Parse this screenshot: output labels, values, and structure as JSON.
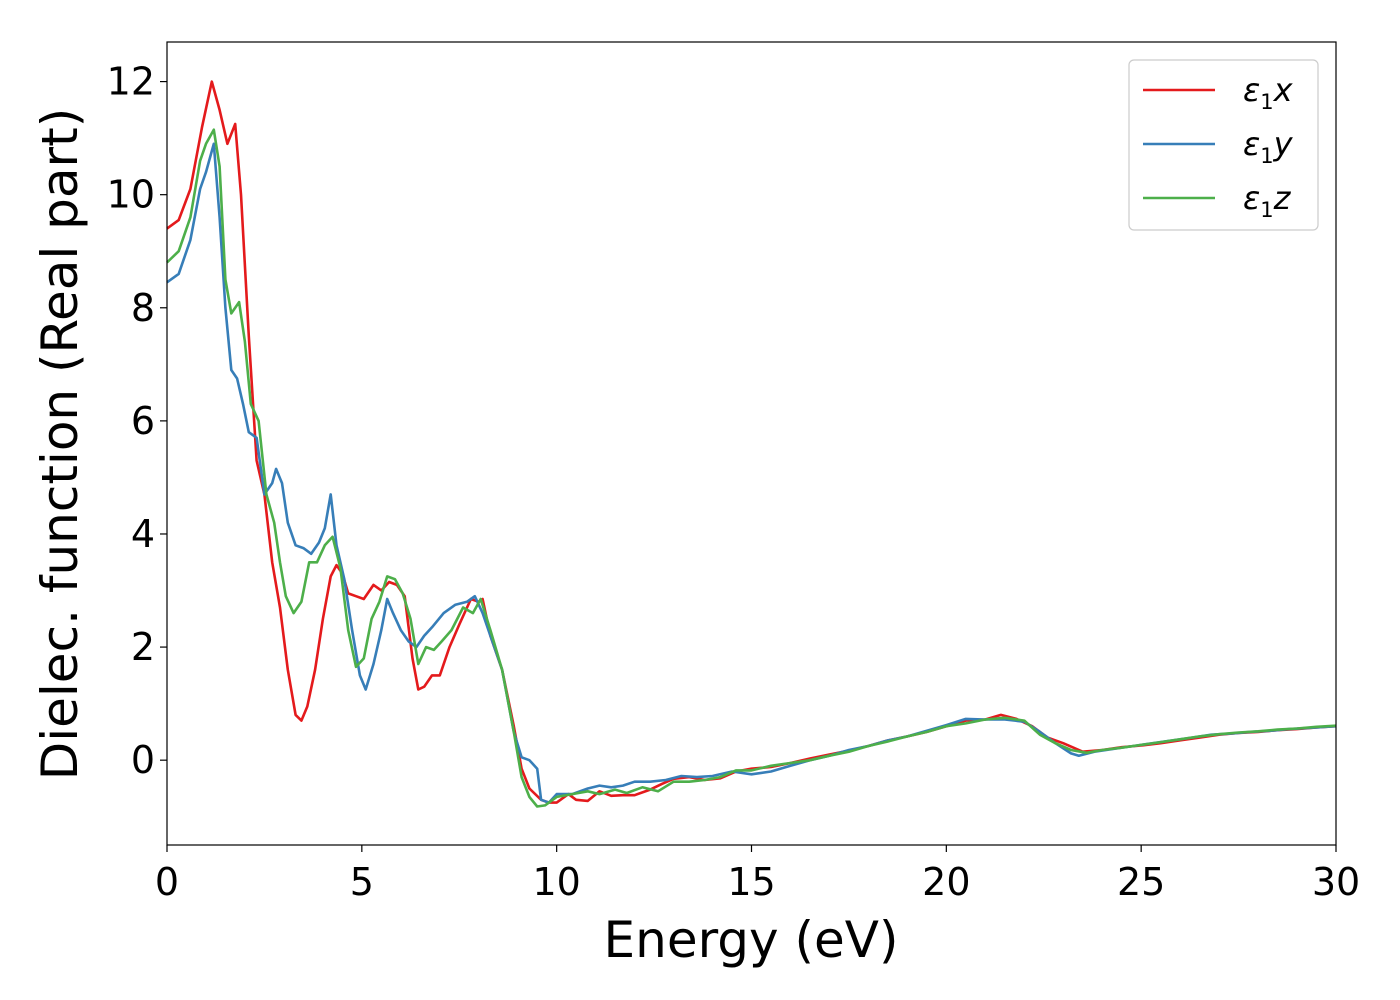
{
  "chart_data": {
    "type": "line",
    "xlabel": "Energy (eV)",
    "ylabel": "Dielec. function (Real part)",
    "xlim": [
      0,
      30
    ],
    "ylim": [
      -1.5,
      12.7
    ],
    "xticks": [
      0,
      5,
      10,
      15,
      20,
      25,
      30
    ],
    "yticks": [
      0,
      2,
      4,
      6,
      8,
      10,
      12
    ],
    "grid": false,
    "legend_position": "top-right",
    "series": [
      {
        "name": "ε1x",
        "legend": {
          "base": "ε",
          "sub": "1",
          "tail": "x"
        },
        "color": "#e41a1c",
        "points": [
          [
            0,
            9.4
          ],
          [
            0.3,
            9.55
          ],
          [
            0.6,
            10.1
          ],
          [
            0.9,
            11.2
          ],
          [
            1.15,
            12.0
          ],
          [
            1.35,
            11.5
          ],
          [
            1.55,
            10.9
          ],
          [
            1.75,
            11.25
          ],
          [
            1.9,
            10.0
          ],
          [
            2.1,
            7.5
          ],
          [
            2.3,
            5.3
          ],
          [
            2.5,
            4.7
          ],
          [
            2.7,
            3.5
          ],
          [
            2.9,
            2.7
          ],
          [
            3.1,
            1.6
          ],
          [
            3.3,
            0.8
          ],
          [
            3.45,
            0.7
          ],
          [
            3.6,
            0.95
          ],
          [
            3.8,
            1.6
          ],
          [
            4.0,
            2.5
          ],
          [
            4.2,
            3.25
          ],
          [
            4.35,
            3.45
          ],
          [
            4.5,
            3.3
          ],
          [
            4.65,
            2.95
          ],
          [
            4.85,
            2.9
          ],
          [
            5.05,
            2.85
          ],
          [
            5.3,
            3.1
          ],
          [
            5.5,
            3.0
          ],
          [
            5.7,
            3.15
          ],
          [
            5.9,
            3.1
          ],
          [
            6.1,
            2.9
          ],
          [
            6.3,
            1.8
          ],
          [
            6.45,
            1.25
          ],
          [
            6.6,
            1.3
          ],
          [
            6.8,
            1.5
          ],
          [
            7.0,
            1.5
          ],
          [
            7.25,
            2.0
          ],
          [
            7.5,
            2.4
          ],
          [
            7.8,
            2.85
          ],
          [
            8.0,
            2.8
          ],
          [
            8.1,
            2.85
          ],
          [
            8.3,
            2.2
          ],
          [
            8.6,
            1.6
          ],
          [
            8.9,
            0.6
          ],
          [
            9.1,
            -0.15
          ],
          [
            9.3,
            -0.5
          ],
          [
            9.6,
            -0.7
          ],
          [
            9.8,
            -0.75
          ],
          [
            10.0,
            -0.75
          ],
          [
            10.3,
            -0.6
          ],
          [
            10.5,
            -0.7
          ],
          [
            10.8,
            -0.72
          ],
          [
            11.1,
            -0.55
          ],
          [
            11.4,
            -0.63
          ],
          [
            11.7,
            -0.62
          ],
          [
            12.0,
            -0.62
          ],
          [
            12.4,
            -0.52
          ],
          [
            12.7,
            -0.42
          ],
          [
            13.0,
            -0.33
          ],
          [
            13.4,
            -0.3
          ],
          [
            13.8,
            -0.35
          ],
          [
            14.2,
            -0.32
          ],
          [
            14.6,
            -0.2
          ],
          [
            15.0,
            -0.15
          ],
          [
            15.5,
            -0.12
          ],
          [
            16.0,
            -0.05
          ],
          [
            16.5,
            0.03
          ],
          [
            17.0,
            0.1
          ],
          [
            17.5,
            0.17
          ],
          [
            18.0,
            0.25
          ],
          [
            18.5,
            0.35
          ],
          [
            19.0,
            0.42
          ],
          [
            19.5,
            0.5
          ],
          [
            20.0,
            0.6
          ],
          [
            20.5,
            0.7
          ],
          [
            21.0,
            0.72
          ],
          [
            21.4,
            0.8
          ],
          [
            21.8,
            0.73
          ],
          [
            22.2,
            0.6
          ],
          [
            22.6,
            0.4
          ],
          [
            23.0,
            0.3
          ],
          [
            23.5,
            0.15
          ],
          [
            24.0,
            0.18
          ],
          [
            24.5,
            0.23
          ],
          [
            25.0,
            0.26
          ],
          [
            25.5,
            0.3
          ],
          [
            26.0,
            0.35
          ],
          [
            26.5,
            0.4
          ],
          [
            27.0,
            0.45
          ],
          [
            27.5,
            0.48
          ],
          [
            28.0,
            0.5
          ],
          [
            28.5,
            0.53
          ],
          [
            29.0,
            0.55
          ],
          [
            29.5,
            0.58
          ],
          [
            30.0,
            0.6
          ]
        ]
      },
      {
        "name": "ε1y",
        "legend": {
          "base": "ε",
          "sub": "1",
          "tail": "y"
        },
        "color": "#377eb8",
        "points": [
          [
            0,
            8.45
          ],
          [
            0.3,
            8.6
          ],
          [
            0.6,
            9.2
          ],
          [
            0.85,
            10.1
          ],
          [
            1.0,
            10.4
          ],
          [
            1.2,
            10.9
          ],
          [
            1.35,
            9.6
          ],
          [
            1.5,
            8.0
          ],
          [
            1.65,
            6.9
          ],
          [
            1.8,
            6.75
          ],
          [
            1.95,
            6.3
          ],
          [
            2.1,
            5.8
          ],
          [
            2.3,
            5.7
          ],
          [
            2.5,
            4.7
          ],
          [
            2.7,
            4.9
          ],
          [
            2.8,
            5.15
          ],
          [
            2.95,
            4.9
          ],
          [
            3.1,
            4.2
          ],
          [
            3.3,
            3.8
          ],
          [
            3.5,
            3.75
          ],
          [
            3.7,
            3.65
          ],
          [
            3.9,
            3.85
          ],
          [
            4.05,
            4.1
          ],
          [
            4.2,
            4.7
          ],
          [
            4.35,
            3.8
          ],
          [
            4.55,
            3.2
          ],
          [
            4.75,
            2.3
          ],
          [
            4.95,
            1.5
          ],
          [
            5.1,
            1.25
          ],
          [
            5.3,
            1.7
          ],
          [
            5.5,
            2.3
          ],
          [
            5.65,
            2.85
          ],
          [
            5.8,
            2.6
          ],
          [
            6.0,
            2.3
          ],
          [
            6.2,
            2.1
          ],
          [
            6.4,
            2.0
          ],
          [
            6.6,
            2.2
          ],
          [
            6.8,
            2.35
          ],
          [
            7.1,
            2.6
          ],
          [
            7.4,
            2.75
          ],
          [
            7.7,
            2.8
          ],
          [
            7.9,
            2.9
          ],
          [
            8.1,
            2.6
          ],
          [
            8.3,
            2.2
          ],
          [
            8.6,
            1.6
          ],
          [
            8.9,
            0.5
          ],
          [
            9.1,
            0.05
          ],
          [
            9.3,
            0.0
          ],
          [
            9.5,
            -0.15
          ],
          [
            9.6,
            -0.7
          ],
          [
            9.8,
            -0.75
          ],
          [
            10.0,
            -0.6
          ],
          [
            10.4,
            -0.6
          ],
          [
            10.8,
            -0.5
          ],
          [
            11.1,
            -0.45
          ],
          [
            11.4,
            -0.48
          ],
          [
            11.7,
            -0.45
          ],
          [
            12.0,
            -0.38
          ],
          [
            12.4,
            -0.38
          ],
          [
            12.8,
            -0.35
          ],
          [
            13.2,
            -0.28
          ],
          [
            13.6,
            -0.3
          ],
          [
            14.0,
            -0.28
          ],
          [
            14.5,
            -0.2
          ],
          [
            15.0,
            -0.25
          ],
          [
            15.5,
            -0.2
          ],
          [
            16.0,
            -0.1
          ],
          [
            16.5,
            0.0
          ],
          [
            17.0,
            0.08
          ],
          [
            17.5,
            0.18
          ],
          [
            18.0,
            0.25
          ],
          [
            18.5,
            0.35
          ],
          [
            19.0,
            0.42
          ],
          [
            19.5,
            0.52
          ],
          [
            20.0,
            0.62
          ],
          [
            20.5,
            0.73
          ],
          [
            21.0,
            0.72
          ],
          [
            21.5,
            0.72
          ],
          [
            22.0,
            0.68
          ],
          [
            22.4,
            0.5
          ],
          [
            22.8,
            0.3
          ],
          [
            23.2,
            0.12
          ],
          [
            23.4,
            0.08
          ],
          [
            23.8,
            0.15
          ],
          [
            24.3,
            0.2
          ],
          [
            24.8,
            0.25
          ],
          [
            25.3,
            0.3
          ],
          [
            25.8,
            0.35
          ],
          [
            26.3,
            0.4
          ],
          [
            26.8,
            0.45
          ],
          [
            27.3,
            0.47
          ],
          [
            27.8,
            0.5
          ],
          [
            28.3,
            0.52
          ],
          [
            28.8,
            0.55
          ],
          [
            29.3,
            0.57
          ],
          [
            30.0,
            0.6
          ]
        ]
      },
      {
        "name": "ε1z",
        "legend": {
          "base": "ε",
          "sub": "1",
          "tail": "z"
        },
        "color": "#4daf4a",
        "points": [
          [
            0,
            8.8
          ],
          [
            0.3,
            9.0
          ],
          [
            0.6,
            9.6
          ],
          [
            0.85,
            10.6
          ],
          [
            1.0,
            10.9
          ],
          [
            1.2,
            11.15
          ],
          [
            1.35,
            10.5
          ],
          [
            1.5,
            8.5
          ],
          [
            1.65,
            7.9
          ],
          [
            1.85,
            8.1
          ],
          [
            2.0,
            7.4
          ],
          [
            2.15,
            6.3
          ],
          [
            2.35,
            6.0
          ],
          [
            2.55,
            4.7
          ],
          [
            2.75,
            4.2
          ],
          [
            2.9,
            3.5
          ],
          [
            3.05,
            2.9
          ],
          [
            3.25,
            2.6
          ],
          [
            3.45,
            2.8
          ],
          [
            3.65,
            3.5
          ],
          [
            3.85,
            3.5
          ],
          [
            4.05,
            3.8
          ],
          [
            4.25,
            3.95
          ],
          [
            4.45,
            3.4
          ],
          [
            4.65,
            2.3
          ],
          [
            4.85,
            1.65
          ],
          [
            5.05,
            1.8
          ],
          [
            5.25,
            2.5
          ],
          [
            5.45,
            2.8
          ],
          [
            5.65,
            3.25
          ],
          [
            5.85,
            3.2
          ],
          [
            6.05,
            2.95
          ],
          [
            6.25,
            2.5
          ],
          [
            6.45,
            1.7
          ],
          [
            6.65,
            2.0
          ],
          [
            6.85,
            1.95
          ],
          [
            7.05,
            2.1
          ],
          [
            7.3,
            2.3
          ],
          [
            7.6,
            2.7
          ],
          [
            7.85,
            2.6
          ],
          [
            8.05,
            2.85
          ],
          [
            8.3,
            2.3
          ],
          [
            8.6,
            1.6
          ],
          [
            8.9,
            0.5
          ],
          [
            9.1,
            -0.3
          ],
          [
            9.3,
            -0.65
          ],
          [
            9.5,
            -0.82
          ],
          [
            9.7,
            -0.8
          ],
          [
            10.0,
            -0.65
          ],
          [
            10.4,
            -0.6
          ],
          [
            10.8,
            -0.55
          ],
          [
            11.1,
            -0.6
          ],
          [
            11.5,
            -0.52
          ],
          [
            11.8,
            -0.58
          ],
          [
            12.2,
            -0.48
          ],
          [
            12.6,
            -0.55
          ],
          [
            13.0,
            -0.38
          ],
          [
            13.4,
            -0.38
          ],
          [
            13.8,
            -0.35
          ],
          [
            14.2,
            -0.3
          ],
          [
            14.6,
            -0.18
          ],
          [
            15.0,
            -0.18
          ],
          [
            15.5,
            -0.1
          ],
          [
            16.0,
            -0.05
          ],
          [
            16.5,
            0.0
          ],
          [
            17.0,
            0.08
          ],
          [
            17.5,
            0.15
          ],
          [
            18.0,
            0.25
          ],
          [
            18.5,
            0.33
          ],
          [
            19.0,
            0.42
          ],
          [
            19.5,
            0.5
          ],
          [
            20.0,
            0.6
          ],
          [
            20.5,
            0.65
          ],
          [
            21.0,
            0.72
          ],
          [
            21.5,
            0.75
          ],
          [
            22.0,
            0.7
          ],
          [
            22.4,
            0.45
          ],
          [
            22.8,
            0.3
          ],
          [
            23.2,
            0.18
          ],
          [
            23.6,
            0.13
          ],
          [
            24.0,
            0.18
          ],
          [
            24.5,
            0.22
          ],
          [
            25.0,
            0.27
          ],
          [
            25.5,
            0.32
          ],
          [
            26.0,
            0.37
          ],
          [
            26.5,
            0.42
          ],
          [
            27.0,
            0.46
          ],
          [
            27.5,
            0.49
          ],
          [
            28.0,
            0.51
          ],
          [
            28.5,
            0.54
          ],
          [
            29.0,
            0.56
          ],
          [
            29.5,
            0.59
          ],
          [
            30.0,
            0.61
          ]
        ]
      }
    ]
  }
}
